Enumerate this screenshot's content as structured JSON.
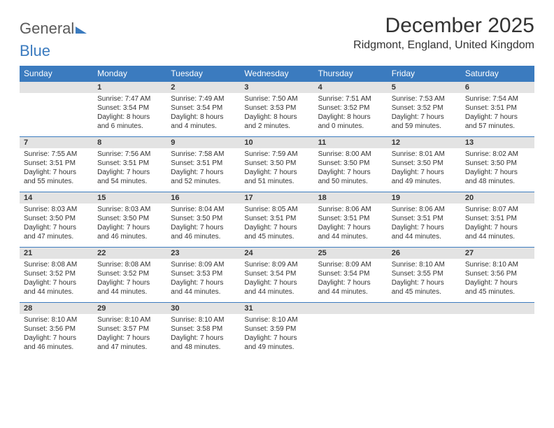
{
  "logo": {
    "part1": "General",
    "part2": "Blue"
  },
  "title": "December 2025",
  "location": "Ridgmont, England, United Kingdom",
  "colors": {
    "header_bg": "#3b7bbf",
    "header_text": "#ffffff",
    "daynum_bg": "#e3e3e3",
    "rule": "#3b7bbf",
    "text": "#333333"
  },
  "dow": [
    "Sunday",
    "Monday",
    "Tuesday",
    "Wednesday",
    "Thursday",
    "Friday",
    "Saturday"
  ],
  "weeks": [
    {
      "nums": [
        "",
        "1",
        "2",
        "3",
        "4",
        "5",
        "6"
      ],
      "cells": [
        null,
        {
          "sunrise": "7:47 AM",
          "sunset": "3:54 PM",
          "day_h": "8",
          "day_m": "6"
        },
        {
          "sunrise": "7:49 AM",
          "sunset": "3:54 PM",
          "day_h": "8",
          "day_m": "4"
        },
        {
          "sunrise": "7:50 AM",
          "sunset": "3:53 PM",
          "day_h": "8",
          "day_m": "2"
        },
        {
          "sunrise": "7:51 AM",
          "sunset": "3:52 PM",
          "day_h": "8",
          "day_m": "0"
        },
        {
          "sunrise": "7:53 AM",
          "sunset": "3:52 PM",
          "day_h": "7",
          "day_m": "59"
        },
        {
          "sunrise": "7:54 AM",
          "sunset": "3:51 PM",
          "day_h": "7",
          "day_m": "57"
        }
      ]
    },
    {
      "nums": [
        "7",
        "8",
        "9",
        "10",
        "11",
        "12",
        "13"
      ],
      "cells": [
        {
          "sunrise": "7:55 AM",
          "sunset": "3:51 PM",
          "day_h": "7",
          "day_m": "55"
        },
        {
          "sunrise": "7:56 AM",
          "sunset": "3:51 PM",
          "day_h": "7",
          "day_m": "54"
        },
        {
          "sunrise": "7:58 AM",
          "sunset": "3:51 PM",
          "day_h": "7",
          "day_m": "52"
        },
        {
          "sunrise": "7:59 AM",
          "sunset": "3:50 PM",
          "day_h": "7",
          "day_m": "51"
        },
        {
          "sunrise": "8:00 AM",
          "sunset": "3:50 PM",
          "day_h": "7",
          "day_m": "50"
        },
        {
          "sunrise": "8:01 AM",
          "sunset": "3:50 PM",
          "day_h": "7",
          "day_m": "49"
        },
        {
          "sunrise": "8:02 AM",
          "sunset": "3:50 PM",
          "day_h": "7",
          "day_m": "48"
        }
      ]
    },
    {
      "nums": [
        "14",
        "15",
        "16",
        "17",
        "18",
        "19",
        "20"
      ],
      "cells": [
        {
          "sunrise": "8:03 AM",
          "sunset": "3:50 PM",
          "day_h": "7",
          "day_m": "47"
        },
        {
          "sunrise": "8:03 AM",
          "sunset": "3:50 PM",
          "day_h": "7",
          "day_m": "46"
        },
        {
          "sunrise": "8:04 AM",
          "sunset": "3:50 PM",
          "day_h": "7",
          "day_m": "46"
        },
        {
          "sunrise": "8:05 AM",
          "sunset": "3:51 PM",
          "day_h": "7",
          "day_m": "45"
        },
        {
          "sunrise": "8:06 AM",
          "sunset": "3:51 PM",
          "day_h": "7",
          "day_m": "44"
        },
        {
          "sunrise": "8:06 AM",
          "sunset": "3:51 PM",
          "day_h": "7",
          "day_m": "44"
        },
        {
          "sunrise": "8:07 AM",
          "sunset": "3:51 PM",
          "day_h": "7",
          "day_m": "44"
        }
      ]
    },
    {
      "nums": [
        "21",
        "22",
        "23",
        "24",
        "25",
        "26",
        "27"
      ],
      "cells": [
        {
          "sunrise": "8:08 AM",
          "sunset": "3:52 PM",
          "day_h": "7",
          "day_m": "44"
        },
        {
          "sunrise": "8:08 AM",
          "sunset": "3:52 PM",
          "day_h": "7",
          "day_m": "44"
        },
        {
          "sunrise": "8:09 AM",
          "sunset": "3:53 PM",
          "day_h": "7",
          "day_m": "44"
        },
        {
          "sunrise": "8:09 AM",
          "sunset": "3:54 PM",
          "day_h": "7",
          "day_m": "44"
        },
        {
          "sunrise": "8:09 AM",
          "sunset": "3:54 PM",
          "day_h": "7",
          "day_m": "44"
        },
        {
          "sunrise": "8:10 AM",
          "sunset": "3:55 PM",
          "day_h": "7",
          "day_m": "45"
        },
        {
          "sunrise": "8:10 AM",
          "sunset": "3:56 PM",
          "day_h": "7",
          "day_m": "45"
        }
      ]
    },
    {
      "nums": [
        "28",
        "29",
        "30",
        "31",
        "",
        "",
        ""
      ],
      "cells": [
        {
          "sunrise": "8:10 AM",
          "sunset": "3:56 PM",
          "day_h": "7",
          "day_m": "46"
        },
        {
          "sunrise": "8:10 AM",
          "sunset": "3:57 PM",
          "day_h": "7",
          "day_m": "47"
        },
        {
          "sunrise": "8:10 AM",
          "sunset": "3:58 PM",
          "day_h": "7",
          "day_m": "48"
        },
        {
          "sunrise": "8:10 AM",
          "sunset": "3:59 PM",
          "day_h": "7",
          "day_m": "49"
        },
        null,
        null,
        null
      ]
    }
  ],
  "labels": {
    "sunrise": "Sunrise: ",
    "sunset": "Sunset: ",
    "daylight_pre": "Daylight: ",
    "hours_word": " hours",
    "and_word": "and ",
    "minutes_word": " minutes."
  }
}
